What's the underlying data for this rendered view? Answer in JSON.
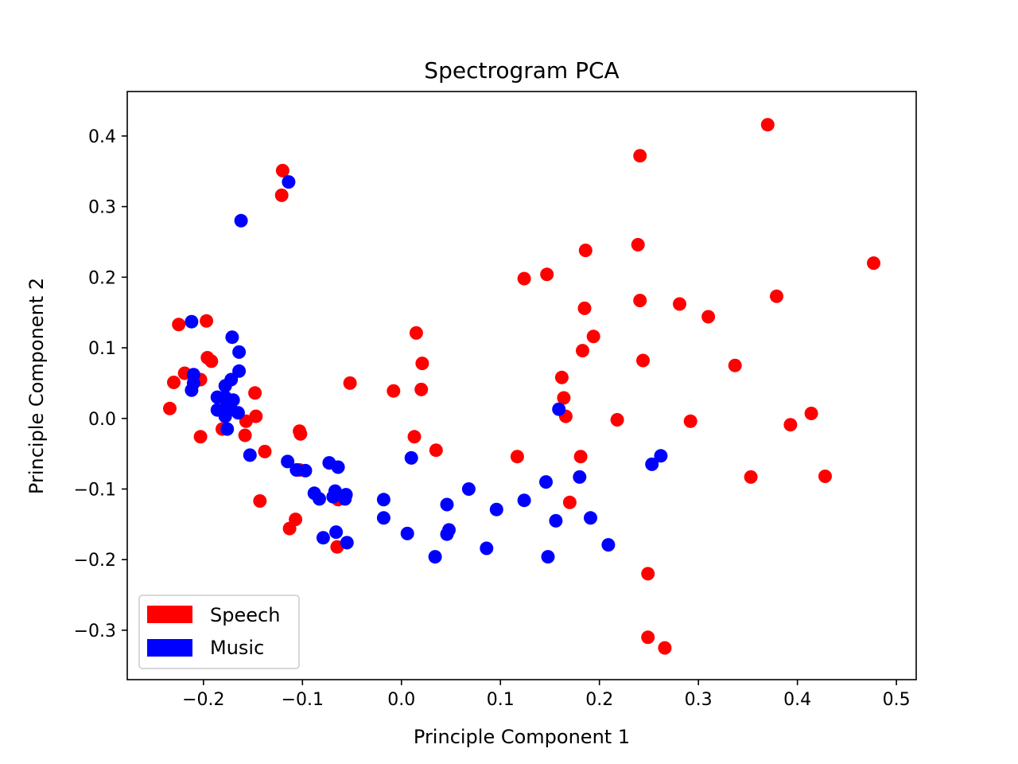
{
  "chart_data": {
    "type": "scatter",
    "title": "Spectrogram PCA",
    "xlabel": "Principle Component 1",
    "ylabel": "Principle Component 2",
    "xlim": [
      -0.277,
      0.52
    ],
    "ylim": [
      -0.37,
      0.463
    ],
    "xticks": [
      -0.2,
      -0.1,
      0.0,
      0.1,
      0.2,
      0.3,
      0.4,
      0.5
    ],
    "xtick_labels": [
      "−0.2",
      "−0.1",
      "0.0",
      "0.1",
      "0.2",
      "0.3",
      "0.4",
      "0.5"
    ],
    "yticks": [
      -0.3,
      -0.2,
      -0.1,
      0.0,
      0.1,
      0.2,
      0.3,
      0.4
    ],
    "ytick_labels": [
      "−0.3",
      "−0.2",
      "−0.1",
      "0.0",
      "0.1",
      "0.2",
      "0.3",
      "0.4"
    ],
    "grid": false,
    "legend_position": "lower-left",
    "series": [
      {
        "name": "Speech",
        "color": "#ff0000",
        "points": [
          [
            0.37,
            0.416
          ],
          [
            0.241,
            0.372
          ],
          [
            -0.12,
            0.351
          ],
          [
            -0.121,
            0.316
          ],
          [
            0.477,
            0.22
          ],
          [
            0.239,
            0.246
          ],
          [
            0.186,
            0.238
          ],
          [
            0.147,
            0.204
          ],
          [
            0.124,
            0.198
          ],
          [
            0.379,
            0.173
          ],
          [
            0.241,
            0.167
          ],
          [
            0.281,
            0.162
          ],
          [
            0.185,
            0.156
          ],
          [
            0.31,
            0.144
          ],
          [
            -0.225,
            0.133
          ],
          [
            -0.197,
            0.138
          ],
          [
            0.015,
            0.121
          ],
          [
            0.194,
            0.116
          ],
          [
            0.183,
            0.096
          ],
          [
            -0.196,
            0.086
          ],
          [
            -0.192,
            0.081
          ],
          [
            0.244,
            0.082
          ],
          [
            0.021,
            0.078
          ],
          [
            0.337,
            0.075
          ],
          [
            -0.219,
            0.064
          ],
          [
            -0.203,
            0.055
          ],
          [
            -0.23,
            0.051
          ],
          [
            0.162,
            0.058
          ],
          [
            -0.052,
            0.05
          ],
          [
            0.02,
            0.041
          ],
          [
            -0.008,
            0.039
          ],
          [
            -0.148,
            0.036
          ],
          [
            0.164,
            0.029
          ],
          [
            -0.234,
            0.014
          ],
          [
            0.414,
            0.007
          ],
          [
            -0.147,
            0.003
          ],
          [
            0.166,
            0.003
          ],
          [
            0.218,
            -0.002
          ],
          [
            0.292,
            -0.004
          ],
          [
            -0.157,
            -0.004
          ],
          [
            0.393,
            -0.009
          ],
          [
            -0.181,
            -0.015
          ],
          [
            -0.103,
            -0.018
          ],
          [
            -0.102,
            -0.022
          ],
          [
            -0.158,
            -0.024
          ],
          [
            -0.203,
            -0.026
          ],
          [
            0.013,
            -0.026
          ],
          [
            0.035,
            -0.045
          ],
          [
            -0.138,
            -0.047
          ],
          [
            0.117,
            -0.054
          ],
          [
            0.181,
            -0.054
          ],
          [
            -0.103,
            -0.073
          ],
          [
            0.353,
            -0.083
          ],
          [
            0.428,
            -0.082
          ],
          [
            -0.064,
            -0.115
          ],
          [
            -0.143,
            -0.117
          ],
          [
            0.17,
            -0.119
          ],
          [
            -0.107,
            -0.143
          ],
          [
            -0.113,
            -0.156
          ],
          [
            -0.065,
            -0.182
          ],
          [
            0.249,
            -0.22
          ],
          [
            0.249,
            -0.31
          ],
          [
            0.266,
            -0.325
          ]
        ]
      },
      {
        "name": "Music",
        "color": "#0000ff",
        "points": [
          [
            -0.114,
            0.335
          ],
          [
            -0.162,
            0.28
          ],
          [
            -0.212,
            0.137
          ],
          [
            -0.171,
            0.115
          ],
          [
            -0.164,
            0.094
          ],
          [
            -0.164,
            0.067
          ],
          [
            -0.21,
            0.062
          ],
          [
            -0.21,
            0.05
          ],
          [
            -0.212,
            0.04
          ],
          [
            -0.172,
            0.055
          ],
          [
            -0.178,
            0.046
          ],
          [
            -0.186,
            0.03
          ],
          [
            -0.178,
            0.03
          ],
          [
            -0.17,
            0.026
          ],
          [
            -0.176,
            0.02
          ],
          [
            -0.186,
            0.012
          ],
          [
            -0.178,
            0.003
          ],
          [
            -0.172,
            0.013
          ],
          [
            -0.165,
            0.008
          ],
          [
            -0.176,
            -0.015
          ],
          [
            -0.153,
            -0.052
          ],
          [
            -0.115,
            -0.061
          ],
          [
            -0.106,
            -0.073
          ],
          [
            -0.097,
            -0.074
          ],
          [
            -0.073,
            -0.063
          ],
          [
            -0.064,
            -0.069
          ],
          [
            -0.088,
            -0.106
          ],
          [
            -0.083,
            -0.114
          ],
          [
            -0.067,
            -0.103
          ],
          [
            -0.069,
            -0.111
          ],
          [
            -0.056,
            -0.108
          ],
          [
            -0.057,
            -0.114
          ],
          [
            -0.018,
            -0.115
          ],
          [
            0.01,
            -0.056
          ],
          [
            0.046,
            -0.122
          ],
          [
            0.068,
            -0.1
          ],
          [
            0.096,
            -0.129
          ],
          [
            0.124,
            -0.116
          ],
          [
            0.146,
            -0.09
          ],
          [
            0.18,
            -0.083
          ],
          [
            0.159,
            0.013
          ],
          [
            0.253,
            -0.065
          ],
          [
            0.262,
            -0.053
          ],
          [
            0.156,
            -0.145
          ],
          [
            0.191,
            -0.141
          ],
          [
            0.209,
            -0.179
          ],
          [
            0.148,
            -0.196
          ],
          [
            0.086,
            -0.184
          ],
          [
            0.048,
            -0.158
          ],
          [
            0.046,
            -0.164
          ],
          [
            0.034,
            -0.196
          ],
          [
            0.006,
            -0.163
          ],
          [
            -0.018,
            -0.141
          ],
          [
            -0.079,
            -0.169
          ],
          [
            -0.066,
            -0.161
          ],
          [
            -0.055,
            -0.176
          ]
        ]
      }
    ]
  }
}
